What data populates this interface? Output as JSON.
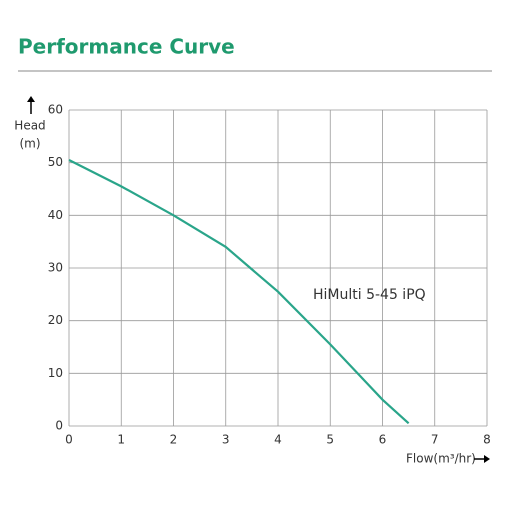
{
  "chart_data": {
    "type": "line",
    "title": "Performance Curve",
    "x_label": "Flow(m³/hr)",
    "y_label": [
      "Head",
      "(m)"
    ],
    "x": [
      0,
      1,
      2,
      3,
      4,
      5,
      6,
      6.5
    ],
    "series": [
      {
        "name": "HiMulti 5-45 iPQ",
        "color": "#2aa58a",
        "values": [
          50.5,
          45.5,
          40,
          34,
          25.5,
          15.5,
          5,
          0.5
        ]
      }
    ],
    "xlim": [
      0,
      8
    ],
    "xticks": [
      0,
      1,
      2,
      3,
      4,
      5,
      6,
      7,
      8
    ],
    "ylim": [
      0,
      60
    ],
    "yticks": [
      0,
      10,
      20,
      30,
      40,
      50,
      60
    ],
    "grid": true
  }
}
